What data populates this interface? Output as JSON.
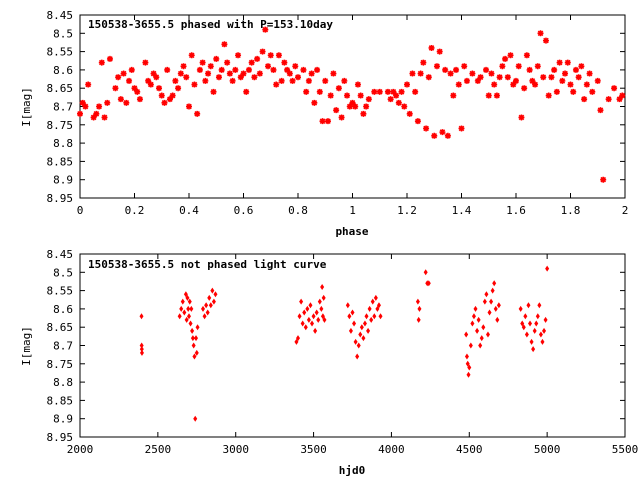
{
  "chart_data": [
    {
      "type": "scatter",
      "title": "150538-3655.5 phased with P=153.10day",
      "xlabel": "phase",
      "ylabel": "I[mag]",
      "xlim": [
        0,
        2
      ],
      "ylim": [
        8.95,
        8.45
      ],
      "y_inverted": true,
      "grid": false,
      "marker": "star",
      "color": "#ff0000",
      "xticks": [
        "0",
        "0.2",
        "0.4",
        "0.6",
        "0.8",
        "1",
        "1.2",
        "1.4",
        "1.6",
        "1.8",
        "2"
      ],
      "yticks": [
        "8.45",
        "8.5",
        "8.55",
        "8.6",
        "8.65",
        "8.7",
        "8.75",
        "8.8",
        "8.85",
        "8.9",
        "8.95"
      ],
      "points": [
        [
          0.0,
          8.72
        ],
        [
          0.01,
          8.69
        ],
        [
          0.02,
          8.7
        ],
        [
          0.03,
          8.64
        ],
        [
          0.05,
          8.73
        ],
        [
          0.06,
          8.72
        ],
        [
          0.07,
          8.7
        ],
        [
          0.08,
          8.58
        ],
        [
          0.09,
          8.73
        ],
        [
          0.1,
          8.69
        ],
        [
          0.11,
          8.57
        ],
        [
          0.13,
          8.65
        ],
        [
          0.14,
          8.62
        ],
        [
          0.15,
          8.68
        ],
        [
          0.16,
          8.61
        ],
        [
          0.17,
          8.69
        ],
        [
          0.18,
          8.63
        ],
        [
          0.19,
          8.6
        ],
        [
          0.2,
          8.65
        ],
        [
          0.21,
          8.66
        ],
        [
          0.22,
          8.68
        ],
        [
          0.24,
          8.58
        ],
        [
          0.25,
          8.63
        ],
        [
          0.26,
          8.64
        ],
        [
          0.27,
          8.61
        ],
        [
          0.28,
          8.62
        ],
        [
          0.29,
          8.65
        ],
        [
          0.3,
          8.67
        ],
        [
          0.31,
          8.69
        ],
        [
          0.32,
          8.6
        ],
        [
          0.33,
          8.68
        ],
        [
          0.34,
          8.67
        ],
        [
          0.35,
          8.63
        ],
        [
          0.36,
          8.65
        ],
        [
          0.37,
          8.61
        ],
        [
          0.38,
          8.59
        ],
        [
          0.39,
          8.62
        ],
        [
          0.4,
          8.7
        ],
        [
          0.41,
          8.56
        ],
        [
          0.42,
          8.64
        ],
        [
          0.43,
          8.72
        ],
        [
          0.44,
          8.6
        ],
        [
          0.45,
          8.58
        ],
        [
          0.46,
          8.63
        ],
        [
          0.47,
          8.61
        ],
        [
          0.48,
          8.59
        ],
        [
          0.49,
          8.66
        ],
        [
          0.5,
          8.57
        ],
        [
          0.51,
          8.62
        ],
        [
          0.52,
          8.6
        ],
        [
          0.53,
          8.53
        ],
        [
          0.54,
          8.58
        ],
        [
          0.55,
          8.61
        ],
        [
          0.56,
          8.63
        ],
        [
          0.57,
          8.6
        ],
        [
          0.58,
          8.56
        ],
        [
          0.59,
          8.62
        ],
        [
          0.6,
          8.61
        ],
        [
          0.61,
          8.66
        ],
        [
          0.62,
          8.6
        ],
        [
          0.63,
          8.58
        ],
        [
          0.64,
          8.62
        ],
        [
          0.65,
          8.57
        ],
        [
          0.66,
          8.61
        ],
        [
          0.67,
          8.55
        ],
        [
          0.68,
          8.49
        ],
        [
          0.69,
          8.59
        ],
        [
          0.7,
          8.56
        ],
        [
          0.71,
          8.6
        ],
        [
          0.72,
          8.64
        ],
        [
          0.73,
          8.56
        ],
        [
          0.74,
          8.63
        ],
        [
          0.75,
          8.58
        ],
        [
          0.76,
          8.6
        ],
        [
          0.77,
          8.61
        ],
        [
          0.78,
          8.63
        ],
        [
          0.79,
          8.59
        ],
        [
          0.8,
          8.62
        ],
        [
          0.82,
          8.6
        ],
        [
          0.83,
          8.66
        ],
        [
          0.84,
          8.63
        ],
        [
          0.85,
          8.61
        ],
        [
          0.86,
          8.69
        ],
        [
          0.87,
          8.6
        ],
        [
          0.88,
          8.66
        ],
        [
          0.89,
          8.74
        ],
        [
          0.9,
          8.63
        ],
        [
          0.91,
          8.74
        ],
        [
          0.92,
          8.67
        ],
        [
          0.93,
          8.61
        ],
        [
          0.94,
          8.71
        ],
        [
          0.95,
          8.65
        ],
        [
          0.96,
          8.73
        ],
        [
          0.97,
          8.63
        ],
        [
          0.98,
          8.67
        ],
        [
          0.99,
          8.7
        ],
        [
          1.0,
          8.69
        ],
        [
          1.01,
          8.7
        ],
        [
          1.02,
          8.64
        ],
        [
          1.03,
          8.67
        ],
        [
          1.04,
          8.72
        ],
        [
          1.05,
          8.7
        ],
        [
          1.06,
          8.68
        ],
        [
          1.08,
          8.66
        ],
        [
          1.1,
          8.66
        ],
        [
          1.13,
          8.66
        ],
        [
          1.14,
          8.68
        ],
        [
          1.15,
          8.66
        ],
        [
          1.16,
          8.67
        ],
        [
          1.17,
          8.69
        ],
        [
          1.18,
          8.66
        ],
        [
          1.19,
          8.7
        ],
        [
          1.2,
          8.64
        ],
        [
          1.21,
          8.72
        ],
        [
          1.22,
          8.61
        ],
        [
          1.23,
          8.66
        ],
        [
          1.24,
          8.74
        ],
        [
          1.25,
          8.61
        ],
        [
          1.26,
          8.58
        ],
        [
          1.27,
          8.76
        ],
        [
          1.28,
          8.62
        ],
        [
          1.29,
          8.54
        ],
        [
          1.3,
          8.78
        ],
        [
          1.31,
          8.59
        ],
        [
          1.32,
          8.55
        ],
        [
          1.33,
          8.77
        ],
        [
          1.34,
          8.6
        ],
        [
          1.35,
          8.78
        ],
        [
          1.36,
          8.61
        ],
        [
          1.37,
          8.67
        ],
        [
          1.38,
          8.6
        ],
        [
          1.39,
          8.64
        ],
        [
          1.4,
          8.76
        ],
        [
          1.41,
          8.59
        ],
        [
          1.42,
          8.63
        ],
        [
          1.44,
          8.61
        ],
        [
          1.46,
          8.63
        ],
        [
          1.47,
          8.62
        ],
        [
          1.49,
          8.6
        ],
        [
          1.5,
          8.67
        ],
        [
          1.51,
          8.61
        ],
        [
          1.52,
          8.64
        ],
        [
          1.53,
          8.67
        ],
        [
          1.54,
          8.62
        ],
        [
          1.55,
          8.59
        ],
        [
          1.56,
          8.57
        ],
        [
          1.57,
          8.62
        ],
        [
          1.58,
          8.56
        ],
        [
          1.59,
          8.64
        ],
        [
          1.6,
          8.63
        ],
        [
          1.61,
          8.59
        ],
        [
          1.62,
          8.73
        ],
        [
          1.63,
          8.65
        ],
        [
          1.64,
          8.56
        ],
        [
          1.65,
          8.6
        ],
        [
          1.66,
          8.63
        ],
        [
          1.67,
          8.64
        ],
        [
          1.68,
          8.59
        ],
        [
          1.69,
          8.5
        ],
        [
          1.7,
          8.62
        ],
        [
          1.71,
          8.52
        ],
        [
          1.72,
          8.67
        ],
        [
          1.73,
          8.62
        ],
        [
          1.74,
          8.6
        ],
        [
          1.75,
          8.66
        ],
        [
          1.76,
          8.58
        ],
        [
          1.77,
          8.63
        ],
        [
          1.78,
          8.61
        ],
        [
          1.79,
          8.58
        ],
        [
          1.8,
          8.64
        ],
        [
          1.81,
          8.66
        ],
        [
          1.82,
          8.6
        ],
        [
          1.83,
          8.62
        ],
        [
          1.84,
          8.59
        ],
        [
          1.85,
          8.68
        ],
        [
          1.86,
          8.64
        ],
        [
          1.87,
          8.61
        ],
        [
          1.88,
          8.66
        ],
        [
          1.9,
          8.63
        ],
        [
          1.91,
          8.71
        ],
        [
          1.92,
          8.9
        ],
        [
          1.94,
          8.68
        ],
        [
          1.96,
          8.65
        ],
        [
          1.98,
          8.68
        ],
        [
          1.99,
          8.67
        ]
      ]
    },
    {
      "type": "scatter",
      "title": "150538-3655.5 not phased light curve",
      "xlabel": "hjd0",
      "ylabel": "I[mag]",
      "xlim": [
        2000,
        5500
      ],
      "ylim": [
        8.95,
        8.45
      ],
      "y_inverted": true,
      "grid": false,
      "marker": "diamond",
      "color": "#ff0000",
      "xticks": [
        "2000",
        "2500",
        "3000",
        "3500",
        "4000",
        "4500",
        "5000",
        "5500"
      ],
      "yticks": [
        "8.45",
        "8.5",
        "8.55",
        "8.6",
        "8.65",
        "8.7",
        "8.75",
        "8.8",
        "8.85",
        "8.9",
        "8.95"
      ],
      "points": [
        [
          2395,
          8.62
        ],
        [
          2396,
          8.7
        ],
        [
          2397,
          8.71
        ],
        [
          2398,
          8.72
        ],
        [
          2640,
          8.62
        ],
        [
          2650,
          8.6
        ],
        [
          2660,
          8.58
        ],
        [
          2670,
          8.61
        ],
        [
          2680,
          8.56
        ],
        [
          2685,
          8.63
        ],
        [
          2690,
          8.57
        ],
        [
          2695,
          8.6
        ],
        [
          2700,
          8.62
        ],
        [
          2705,
          8.58
        ],
        [
          2710,
          8.64
        ],
        [
          2715,
          8.6
        ],
        [
          2720,
          8.66
        ],
        [
          2725,
          8.68
        ],
        [
          2730,
          8.7
        ],
        [
          2735,
          8.73
        ],
        [
          2740,
          8.9
        ],
        [
          2745,
          8.68
        ],
        [
          2750,
          8.72
        ],
        [
          2755,
          8.65
        ],
        [
          2790,
          8.6
        ],
        [
          2800,
          8.62
        ],
        [
          2810,
          8.59
        ],
        [
          2820,
          8.61
        ],
        [
          2830,
          8.57
        ],
        [
          2840,
          8.59
        ],
        [
          2850,
          8.55
        ],
        [
          2860,
          8.58
        ],
        [
          2870,
          8.56
        ],
        [
          3390,
          8.69
        ],
        [
          3400,
          8.68
        ],
        [
          3410,
          8.62
        ],
        [
          3420,
          8.58
        ],
        [
          3430,
          8.64
        ],
        [
          3440,
          8.61
        ],
        [
          3450,
          8.65
        ],
        [
          3460,
          8.6
        ],
        [
          3470,
          8.63
        ],
        [
          3480,
          8.59
        ],
        [
          3490,
          8.64
        ],
        [
          3500,
          8.62
        ],
        [
          3510,
          8.66
        ],
        [
          3520,
          8.61
        ],
        [
          3530,
          8.63
        ],
        [
          3540,
          8.58
        ],
        [
          3550,
          8.6
        ],
        [
          3555,
          8.54
        ],
        [
          3560,
          8.62
        ],
        [
          3565,
          8.57
        ],
        [
          3570,
          8.63
        ],
        [
          3720,
          8.59
        ],
        [
          3730,
          8.62
        ],
        [
          3740,
          8.66
        ],
        [
          3750,
          8.61
        ],
        [
          3760,
          8.64
        ],
        [
          3770,
          8.69
        ],
        [
          3780,
          8.73
        ],
        [
          3790,
          8.7
        ],
        [
          3800,
          8.67
        ],
        [
          3810,
          8.65
        ],
        [
          3820,
          8.68
        ],
        [
          3830,
          8.64
        ],
        [
          3840,
          8.62
        ],
        [
          3850,
          8.66
        ],
        [
          3860,
          8.6
        ],
        [
          3870,
          8.63
        ],
        [
          3880,
          8.58
        ],
        [
          3890,
          8.62
        ],
        [
          3900,
          8.57
        ],
        [
          3910,
          8.6
        ],
        [
          3920,
          8.59
        ],
        [
          3930,
          8.62
        ],
        [
          4170,
          8.58
        ],
        [
          4175,
          8.63
        ],
        [
          4180,
          8.6
        ],
        [
          4220,
          8.5
        ],
        [
          4230,
          8.53
        ],
        [
          4240,
          8.53
        ],
        [
          4480,
          8.67
        ],
        [
          4485,
          8.73
        ],
        [
          4490,
          8.75
        ],
        [
          4495,
          8.78
        ],
        [
          4500,
          8.76
        ],
        [
          4510,
          8.7
        ],
        [
          4520,
          8.64
        ],
        [
          4530,
          8.62
        ],
        [
          4540,
          8.6
        ],
        [
          4550,
          8.66
        ],
        [
          4560,
          8.63
        ],
        [
          4570,
          8.7
        ],
        [
          4580,
          8.68
        ],
        [
          4590,
          8.65
        ],
        [
          4600,
          8.58
        ],
        [
          4610,
          8.56
        ],
        [
          4620,
          8.67
        ],
        [
          4630,
          8.61
        ],
        [
          4640,
          8.58
        ],
        [
          4650,
          8.55
        ],
        [
          4660,
          8.53
        ],
        [
          4670,
          8.6
        ],
        [
          4680,
          8.63
        ],
        [
          4690,
          8.59
        ],
        [
          4830,
          8.6
        ],
        [
          4840,
          8.64
        ],
        [
          4850,
          8.65
        ],
        [
          4860,
          8.62
        ],
        [
          4870,
          8.67
        ],
        [
          4880,
          8.59
        ],
        [
          4890,
          8.64
        ],
        [
          4900,
          8.69
        ],
        [
          4910,
          8.71
        ],
        [
          4920,
          8.66
        ],
        [
          4930,
          8.64
        ],
        [
          4940,
          8.62
        ],
        [
          4950,
          8.59
        ],
        [
          4960,
          8.67
        ],
        [
          4970,
          8.69
        ],
        [
          4980,
          8.66
        ],
        [
          4990,
          8.63
        ],
        [
          5000,
          8.49
        ]
      ]
    }
  ]
}
